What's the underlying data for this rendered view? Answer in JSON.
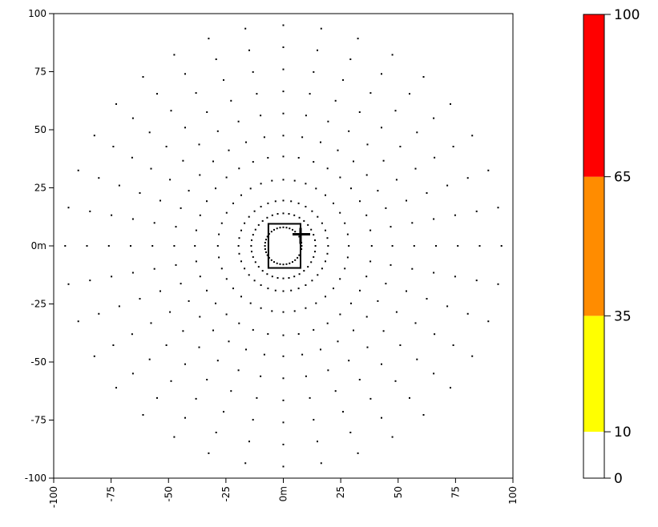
{
  "chart_data": [
    {
      "type": "scatter",
      "title": "",
      "xlabel": "",
      "ylabel": "",
      "xlim": [
        -100,
        100
      ],
      "ylim": [
        -100,
        100
      ],
      "x_ticks": [
        -100,
        -75,
        -50,
        -25,
        0,
        25,
        50,
        75,
        100
      ],
      "x_tick_labels": [
        "-100",
        "-75",
        "-50",
        "-25",
        "0m",
        "25",
        "50",
        "75",
        "100"
      ],
      "y_ticks": [
        -100,
        -75,
        -50,
        -25,
        0,
        25,
        50,
        75,
        100
      ],
      "y_tick_labels": [
        "-100",
        "-75",
        "-50",
        "-25",
        "0m",
        "25",
        "50",
        "75",
        "100"
      ],
      "grid": false,
      "point_color": "#000000",
      "receptor_rings": [
        {
          "radius": 8,
          "count": 36
        },
        {
          "radius": 14,
          "count": 36
        },
        {
          "radius": 19.5,
          "count": 36
        },
        {
          "radius": 28.5,
          "count": 36
        },
        {
          "radius": 38.5,
          "count": 36
        },
        {
          "radius": 47.5,
          "count": 36
        },
        {
          "radius": 57,
          "count": 36
        },
        {
          "radius": 66.5,
          "count": 36
        },
        {
          "radius": 76,
          "count": 36
        },
        {
          "radius": 85.5,
          "count": 36
        },
        {
          "radius": 95,
          "count": 36
        }
      ],
      "building": {
        "x_min": -6.5,
        "x_max": 7.5,
        "y_min": -9.5,
        "y_max": 9.5
      },
      "source_marker": {
        "x": 7.5,
        "y": 5
      }
    },
    {
      "type": "heatmap",
      "role": "color-scale-legend",
      "ylim": [
        0,
        100
      ],
      "segments": [
        {
          "from": 0,
          "to": 10,
          "color": "#ffffff"
        },
        {
          "from": 10,
          "to": 35,
          "color": "#ffff00"
        },
        {
          "from": 35,
          "to": 65,
          "color": "#ff8c00"
        },
        {
          "from": 65,
          "to": 100,
          "color": "#ff0000"
        }
      ],
      "ticks": [
        0,
        10,
        35,
        65,
        100
      ],
      "tick_labels": [
        "0",
        "10",
        "35",
        "65",
        "100"
      ]
    }
  ]
}
